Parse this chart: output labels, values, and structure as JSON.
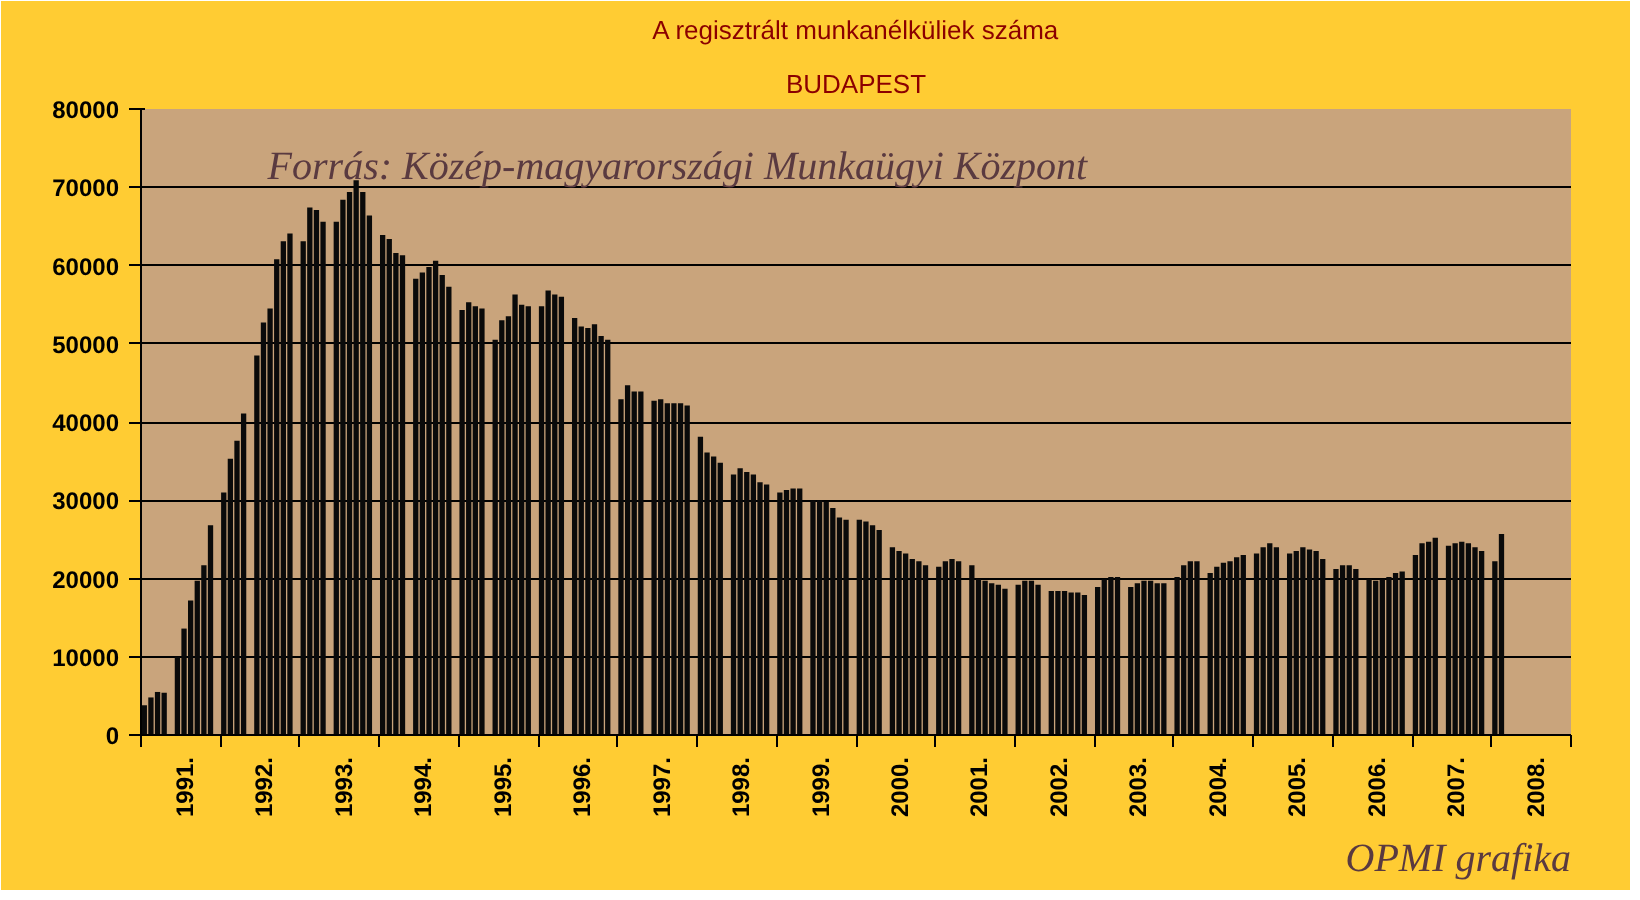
{
  "chart_data": {
    "type": "bar",
    "title": "A regisztrált munkanélküliek száma",
    "subtitle": "BUDAPEST",
    "annotations": [
      "Forrás: Közép-magyarországi Munkaügyi Központ",
      "OPMI grafika"
    ],
    "categories": [
      null,
      null,
      null,
      null,
      null,
      null,
      "1991.",
      null,
      null,
      null,
      null,
      null,
      null,
      null,
      null,
      null,
      null,
      null,
      "1992.",
      null,
      null,
      null,
      null,
      null,
      null,
      null,
      null,
      null,
      null,
      null,
      "1993.",
      null,
      null,
      null,
      null,
      null,
      null,
      null,
      null,
      null,
      null,
      null,
      "1994.",
      null,
      null,
      null,
      null,
      null,
      null,
      null,
      null,
      null,
      null,
      null,
      "1995.",
      null,
      null,
      null,
      null,
      null,
      null,
      null,
      null,
      null,
      null,
      null,
      "1996.",
      null,
      null,
      null,
      null,
      null,
      null,
      null,
      null,
      null,
      null,
      null,
      "1997.",
      null,
      null,
      null,
      null,
      null,
      null,
      null,
      null,
      null,
      null,
      null,
      "1998.",
      null,
      null,
      null,
      null,
      null,
      null,
      null,
      null,
      null,
      null,
      null,
      "1999.",
      null,
      null,
      null,
      null,
      null,
      null,
      null,
      null,
      null,
      null,
      null,
      "2000.",
      null,
      null,
      null,
      null,
      null,
      null,
      null,
      null,
      null,
      null,
      null,
      "2001.",
      null,
      null,
      null,
      null,
      null,
      null,
      null,
      null,
      null,
      null,
      null,
      "2002.",
      null,
      null,
      null,
      null,
      null,
      null,
      null,
      null,
      null,
      null,
      null,
      "2003.",
      null,
      null,
      null,
      null,
      null,
      null,
      null,
      null,
      null,
      null,
      null,
      "2004.",
      null,
      null,
      null,
      null,
      null,
      null,
      null,
      null,
      null,
      null,
      null,
      "2005.",
      null,
      null,
      null,
      null,
      null,
      null,
      null,
      null,
      null,
      null,
      null,
      "2006.",
      null,
      null,
      null,
      null,
      null,
      null,
      null,
      null,
      null,
      null,
      null,
      "2007.",
      null,
      null,
      null,
      null,
      null,
      null,
      null,
      null,
      null,
      null,
      null,
      "2008.",
      null,
      null,
      null,
      null,
      null
    ],
    "values": [
      3800,
      4800,
      5500,
      5400,
      null,
      10000,
      13600,
      17200,
      19700,
      21700,
      26800,
      null,
      31000,
      35300,
      37600,
      41100,
      null,
      48500,
      52700,
      54500,
      60800,
      63100,
      64100,
      null,
      63100,
      67400,
      67100,
      65600,
      null,
      65600,
      68400,
      69400,
      70900,
      69400,
      66400,
      null,
      63900,
      63400,
      61600,
      61300,
      null,
      58300,
      59100,
      59800,
      60600,
      58800,
      57300,
      null,
      54300,
      55300,
      54800,
      54500,
      null,
      50500,
      53000,
      53500,
      56300,
      55000,
      54800,
      null,
      54800,
      56800,
      56300,
      56000,
      null,
      53300,
      52200,
      52000,
      52500,
      51000,
      50500,
      null,
      42900,
      44700,
      43900,
      43900,
      null,
      42700,
      42900,
      42400,
      42400,
      42400,
      42100,
      null,
      38100,
      36100,
      35600,
      34800,
      null,
      33300,
      34100,
      33600,
      33300,
      32300,
      32000,
      null,
      31000,
      31300,
      31500,
      31500,
      null,
      30000,
      30000,
      29800,
      29000,
      27800,
      27500,
      null,
      27500,
      27300,
      26800,
      26200,
      null,
      24000,
      23500,
      23200,
      22500,
      22200,
      21700,
      null,
      21500,
      22200,
      22500,
      22200,
      null,
      21700,
      19900,
      19700,
      19400,
      19200,
      18700,
      null,
      19200,
      19700,
      19700,
      19200,
      null,
      18400,
      18400,
      18400,
      18200,
      18200,
      17900,
      null,
      18900,
      19900,
      20200,
      20200,
      null,
      18900,
      19400,
      19700,
      19700,
      19400,
      19400,
      null,
      20200,
      21700,
      22200,
      22200,
      null,
      20700,
      21500,
      22000,
      22200,
      22700,
      23000,
      null,
      23200,
      24000,
      24500,
      24000,
      null,
      23200,
      23500,
      24000,
      23700,
      23500,
      22500,
      null,
      21200,
      21700,
      21700,
      21200,
      null,
      19900,
      19700,
      19900,
      20200,
      20700,
      20900,
      null,
      23000,
      24500,
      24700,
      25200,
      null,
      24200,
      24500,
      24700,
      24500,
      24000,
      23500,
      null,
      22200,
      25700,
      null,
      null,
      null,
      null,
      null,
      null,
      null,
      null,
      null,
      null
    ],
    "color": "#0a0a0a",
    "ylim": [
      0,
      80000
    ],
    "yticks": [
      0,
      10000,
      20000,
      30000,
      40000,
      50000,
      60000,
      70000,
      80000
    ],
    "grid": "y"
  }
}
